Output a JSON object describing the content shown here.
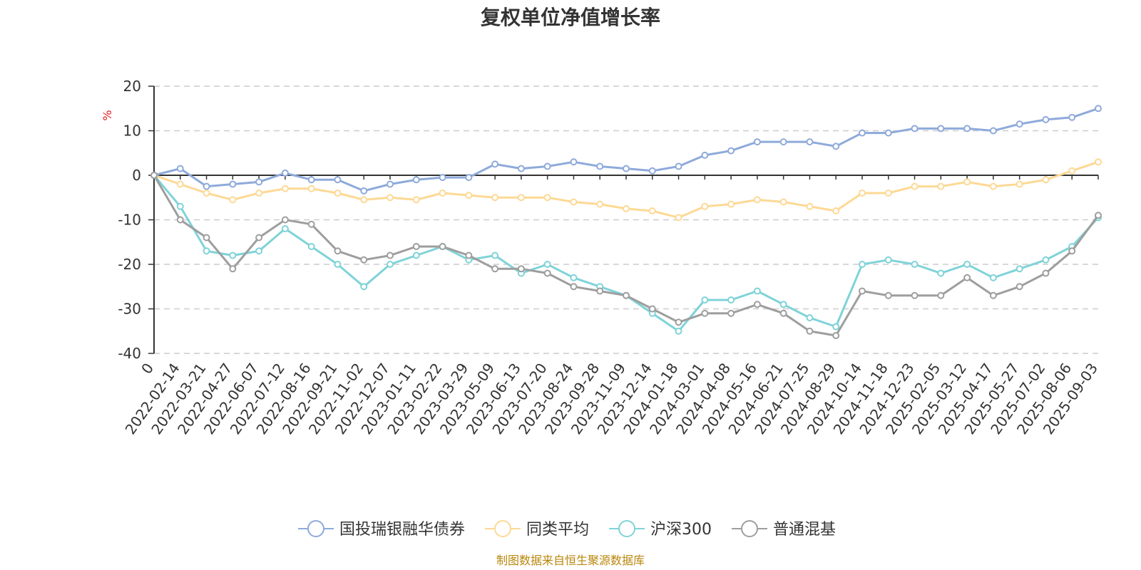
{
  "chart_data": {
    "type": "line",
    "title": "复权单位净值增长率",
    "ylabel": "%",
    "ylim": [
      -40,
      20
    ],
    "yticks": [
      20,
      10,
      0,
      -10,
      -20,
      -30,
      -40
    ],
    "grid": true,
    "legend_position": "bottom",
    "x_tick_labels": [
      "0",
      "2022-02-14",
      "2022-03-21",
      "2022-04-27",
      "2022-06-07",
      "2022-07-12",
      "2022-08-16",
      "2022-09-21",
      "2022-11-02",
      "2022-12-07",
      "2023-01-11",
      "2023-02-22",
      "2023-03-29",
      "2023-05-09",
      "2023-06-13",
      "2023-07-20",
      "2023-08-24",
      "2023-09-28",
      "2023-11-09",
      "2023-12-14",
      "2024-01-18",
      "2024-03-01",
      "2024-04-08",
      "2024-05-16",
      "2024-06-21",
      "2024-07-25",
      "2024-08-29",
      "2024-10-14",
      "2024-11-18",
      "2024-12-23",
      "2025-02-05",
      "2025-03-12",
      "2025-04-17",
      "2025-05-27",
      "2025-07-02",
      "2025-08-06",
      "2025-09-03"
    ],
    "series": [
      {
        "name": "国投瑞银融华债券",
        "color": "#8eaadb",
        "values": [
          0,
          1.5,
          -2.5,
          -2,
          -1.5,
          0.5,
          -1,
          -1,
          -3.5,
          -2,
          -1,
          -0.5,
          -0.5,
          2.5,
          1.5,
          2,
          3,
          2,
          1.5,
          1,
          2,
          4.5,
          5.5,
          7.5,
          7.5,
          7.5,
          6.5,
          9.5,
          9.5,
          10.5,
          10.5,
          10.5,
          10,
          11.5,
          12.5,
          13,
          15
        ]
      },
      {
        "name": "同类平均",
        "color": "#fdd995",
        "values": [
          0,
          -2,
          -4,
          -5.5,
          -4,
          -3,
          -3,
          -4,
          -5.5,
          -5,
          -5.5,
          -4,
          -4.5,
          -5,
          -5,
          -5,
          -6,
          -6.5,
          -7.5,
          -8,
          -9.5,
          -7,
          -6.5,
          -5.5,
          -6,
          -7,
          -8,
          -4,
          -4,
          -2.5,
          -2.5,
          -1.5,
          -2.5,
          -2,
          -1,
          1,
          3
        ]
      },
      {
        "name": "沪深300",
        "color": "#7fd3d8",
        "values": [
          0,
          -7,
          -17,
          -18,
          -17,
          -12,
          -16,
          -20,
          -25,
          -20,
          -18,
          -16,
          -19,
          -18,
          -22,
          -20,
          -23,
          -25,
          -27,
          -31,
          -35,
          -28,
          -28,
          -26,
          -29,
          -32,
          -34,
          -20,
          -19,
          -20,
          -22,
          -20,
          -23,
          -21,
          -19,
          -16,
          -9.5
        ]
      },
      {
        "name": "普通混基",
        "color": "#9e9e9e",
        "values": [
          0,
          -10,
          -14,
          -21,
          -14,
          -10,
          -11,
          -17,
          -19,
          -18,
          -16,
          -16,
          -18,
          -21,
          -21,
          -22,
          -25,
          -26,
          -27,
          -30,
          -33,
          -31,
          -31,
          -29,
          -31,
          -35,
          -36,
          -26,
          -27,
          -27,
          -27,
          -23,
          -27,
          -25,
          -22,
          -17,
          -9
        ]
      }
    ]
  },
  "source_note": "制图数据来自恒生聚源数据库"
}
